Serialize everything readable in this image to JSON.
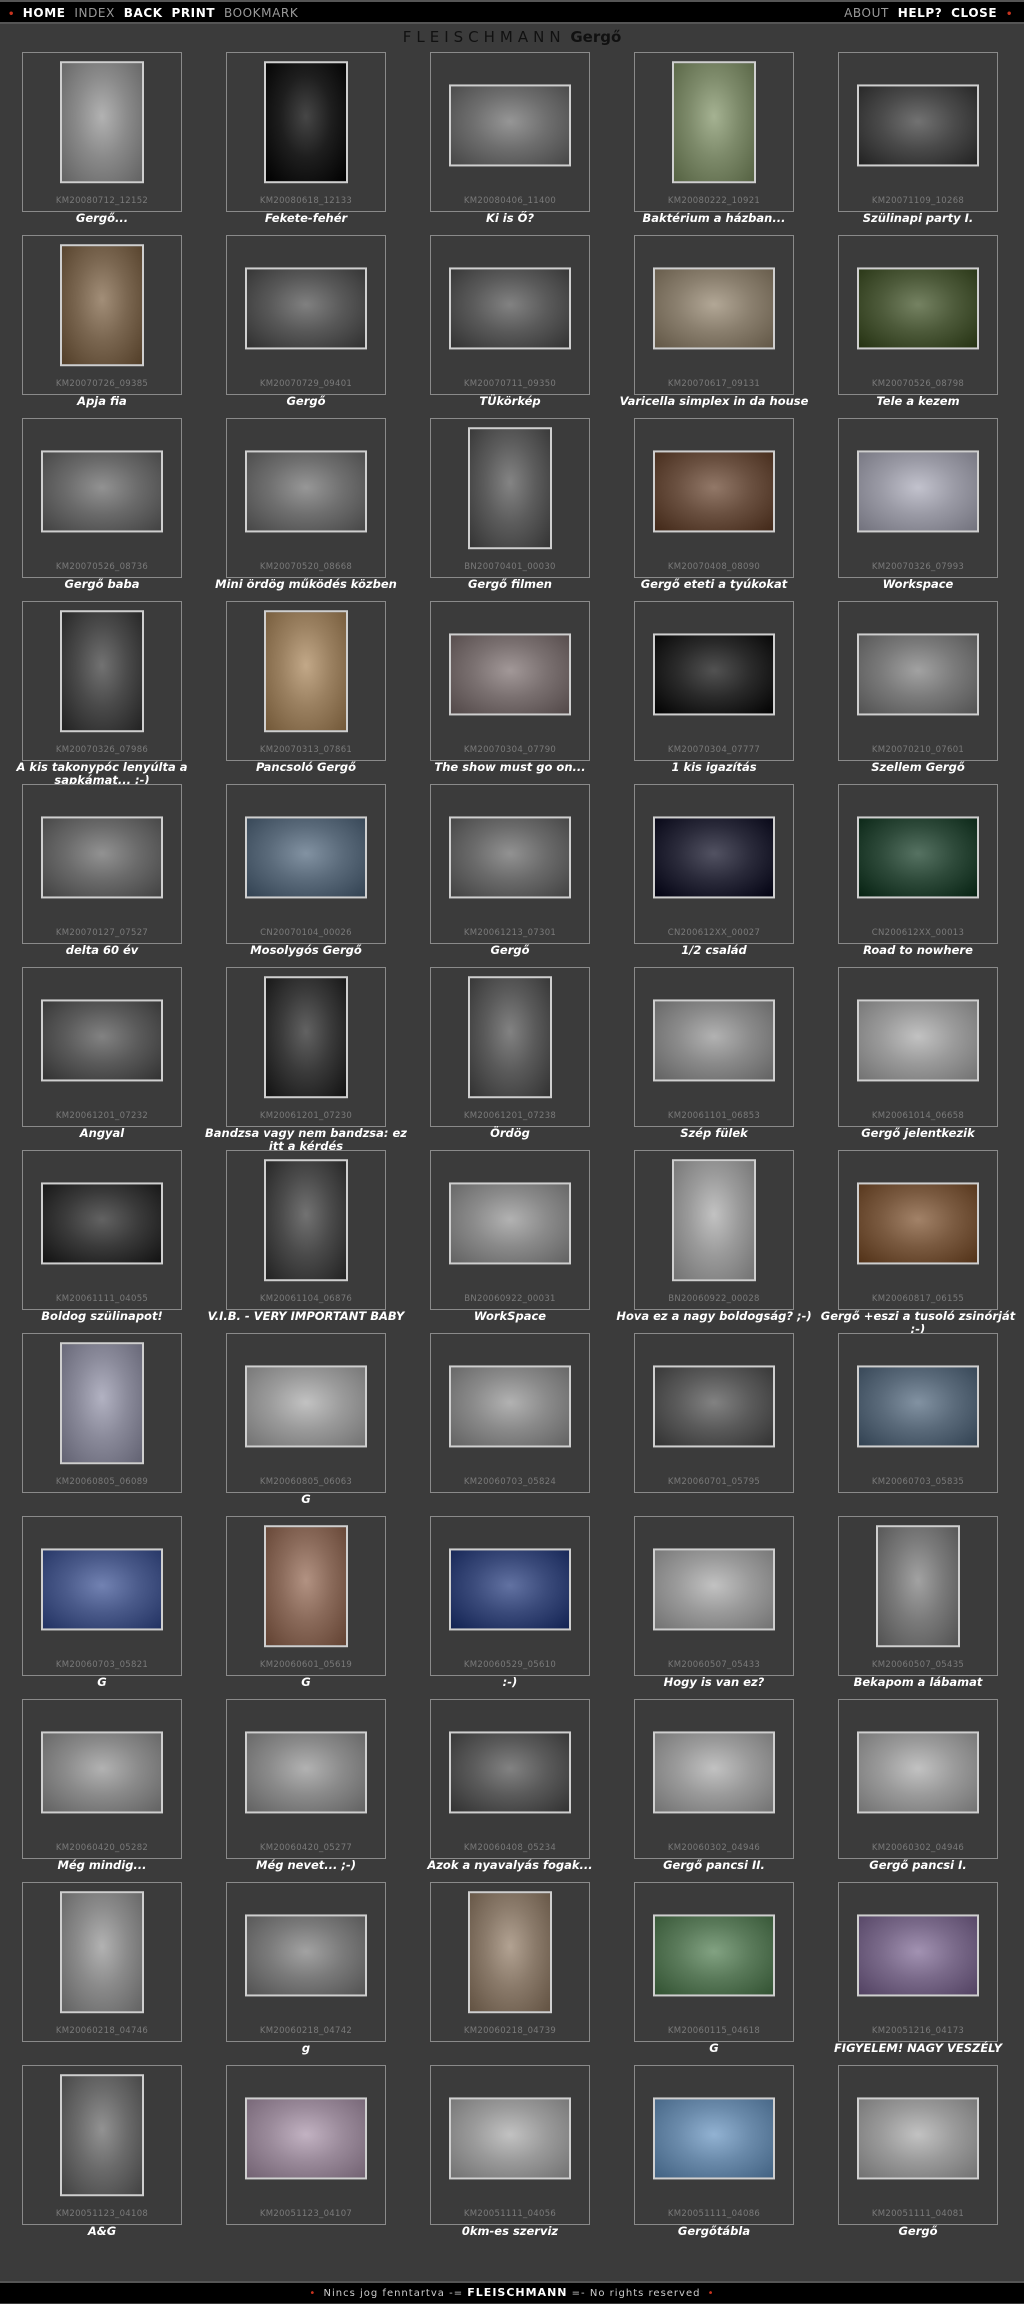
{
  "nav": {
    "left": [
      "HOME",
      "INDEX",
      "BACK",
      "PRINT",
      "BOOKMARK"
    ],
    "right": [
      "ABOUT",
      "HELP?",
      "CLOSE"
    ]
  },
  "title": {
    "brand": "FLEISCHMANN",
    "name": "Gergő"
  },
  "footer": {
    "left": "Nincs jog fenntartva",
    "brand": "FLEISCHMANN",
    "right": "No rights reserved"
  },
  "items": [
    {
      "file": "KM20080712_12152",
      "caption": "Gergő...",
      "o": "p",
      "c": "#8a8a8a"
    },
    {
      "file": "KM20080618_12133",
      "caption": "Fekete-fehér",
      "o": "p",
      "c": "#1e1e1e"
    },
    {
      "file": "KM20080406_11400",
      "caption": "Ki is Ő?",
      "o": "l",
      "c": "#6e6e6e"
    },
    {
      "file": "KM20080222_10921",
      "caption": "Baktérium a házban...",
      "o": "p",
      "c": "#7d8a6a"
    },
    {
      "file": "KM20071109_10268",
      "caption": "Szülinapi party I.",
      "o": "l",
      "c": "#4a4a4a"
    },
    {
      "file": "KM20070726_09385",
      "caption": "Apja fia",
      "o": "p",
      "c": "#7a6650"
    },
    {
      "file": "KM20070729_09401",
      "caption": "Gergő",
      "o": "l",
      "c": "#585858"
    },
    {
      "file": "KM20070711_09350",
      "caption": "TÜkörkép",
      "o": "l",
      "c": "#5a5a5a"
    },
    {
      "file": "KM20070617_09131",
      "caption": "Varicella simplex in da house",
      "o": "l",
      "c": "#8a7f6e"
    },
    {
      "file": "KM20070526_08798",
      "caption": "Tele a kezem",
      "o": "l",
      "c": "#4d5a3a"
    },
    {
      "file": "KM20070526_08736",
      "caption": "Gergő baba",
      "o": "l",
      "c": "#6a6a6a"
    },
    {
      "file": "KM20070520_08668",
      "caption": "Mini ördög működés közben",
      "o": "l",
      "c": "#6f6f6f"
    },
    {
      "file": "BN20070401_00030",
      "caption": "Gergő filmen",
      "o": "p",
      "c": "#5c5c5c"
    },
    {
      "file": "KM20070408_08090",
      "caption": "Gergő eteti a tyúkokat",
      "o": "l",
      "c": "#6a5040"
    },
    {
      "file": "KM20070326_07993",
      "caption": "Workspace",
      "o": "l",
      "c": "#9a9aa5"
    },
    {
      "file": "KM20070326_07986",
      "caption": "A kis takonypóc lenyúlta a sapkámat... ;-)",
      "o": "p",
      "c": "#4a4a4a"
    },
    {
      "file": "KM20070313_07861",
      "caption": "Pancsoló Gergő",
      "o": "p",
      "c": "#9a8060"
    },
    {
      "file": "KM20070304_07790",
      "caption": "The show must go on...",
      "o": "l",
      "c": "#7a7070"
    },
    {
      "file": "KM20070304_07777",
      "caption": "1 kis igazítás",
      "o": "l",
      "c": "#2a2a2a"
    },
    {
      "file": "KM20070210_07601",
      "caption": "Szellem Gergő",
      "o": "l",
      "c": "#7a7a7a"
    },
    {
      "file": "KM20070127_07527",
      "caption": "delta 60 év",
      "o": "l",
      "c": "#6a6a6a"
    },
    {
      "file": "CN20070104_00026",
      "caption": "Mosolygós Gergő",
      "o": "l",
      "c": "#5a6a7a"
    },
    {
      "file": "KM20061213_07301",
      "caption": "Gergő",
      "o": "l",
      "c": "#6a6a6a"
    },
    {
      "file": "CN200612XX_00027",
      "caption": "1/2 család",
      "o": "l",
      "c": "#2a2a3a"
    },
    {
      "file": "CN200612XX_00013",
      "caption": "Road to nowhere",
      "o": "l",
      "c": "#2e4a3a"
    },
    {
      "file": "KM20061201_07232",
      "caption": "Angyal",
      "o": "l",
      "c": "#5a5a5a"
    },
    {
      "file": "KM20061201_07230",
      "caption": "Bandzsa vagy nem bandzsa: ez itt a kérdés",
      "o": "p",
      "c": "#3a3a3a"
    },
    {
      "file": "KM20061201_07238",
      "caption": "Ördög",
      "o": "p",
      "c": "#5a5a5a"
    },
    {
      "file": "KM20061101_06853",
      "caption": "Szép fülek",
      "o": "l",
      "c": "#8a8a8a"
    },
    {
      "file": "KM20061014_06658",
      "caption": "Gergő jelentkezik",
      "o": "l",
      "c": "#9a9a9a"
    },
    {
      "file": "KM20061111_04055",
      "caption": "Boldog szülinapot!",
      "o": "l",
      "c": "#3a3a3a"
    },
    {
      "file": "KM20061104_06876",
      "caption": "V.I.B. - VERY IMPORTANT BABY",
      "o": "p",
      "c": "#4a4a4a"
    },
    {
      "file": "BN20060922_00031",
      "caption": "WorkSpace",
      "o": "l",
      "c": "#8a8a8a"
    },
    {
      "file": "BN20060922_00028",
      "caption": "Hova ez a nagy boldogság? ;-)",
      "o": "p",
      "c": "#9a9a9a"
    },
    {
      "file": "KM20060817_06155",
      "caption": "Gergő +eszi a tusoló zsinórját ;-)",
      "o": "l",
      "c": "#7a5a40"
    },
    {
      "file": "KM20060805_06089",
      "caption": "",
      "o": "p",
      "c": "#8a8a9a"
    },
    {
      "file": "KM20060805_06063",
      "caption": "G",
      "o": "l",
      "c": "#9a9a9a"
    },
    {
      "file": "KM20060703_05824",
      "caption": "",
      "o": "l",
      "c": "#8a8a8a"
    },
    {
      "file": "KM20060701_05795",
      "caption": "",
      "o": "l",
      "c": "#5a5a5a"
    },
    {
      "file": "KM20060703_05835",
      "caption": "",
      "o": "l",
      "c": "#5a6a7a"
    },
    {
      "file": "KM20060703_05821",
      "caption": "G",
      "o": "l",
      "c": "#4a5a8a"
    },
    {
      "file": "KM20060601_05619",
      "caption": "G",
      "o": "p",
      "c": "#8a6a5a"
    },
    {
      "file": "KM20060529_05610",
      "caption": ":-)",
      "o": "l",
      "c": "#3a4a7a"
    },
    {
      "file": "KM20060507_05433",
      "caption": "Hogy is van ez?",
      "o": "l",
      "c": "#9a9a9a"
    },
    {
      "file": "KM20060507_05435",
      "caption": "Bekapom a lábamat",
      "o": "p",
      "c": "#7a7a7a"
    },
    {
      "file": "KM20060420_05282",
      "caption": "Még mindig...",
      "o": "l",
      "c": "#8a8a8a"
    },
    {
      "file": "KM20060420_05277",
      "caption": "Még nevet... ;-)",
      "o": "l",
      "c": "#8a8a8a"
    },
    {
      "file": "KM20060408_05234",
      "caption": "Azok a nyavalyás fogak...",
      "o": "l",
      "c": "#5a5a5a"
    },
    {
      "file": "KM20060302_04946",
      "caption": "Gergő pancsi II.",
      "o": "l",
      "c": "#9a9a9a"
    },
    {
      "file": "KM20060302_04946",
      "caption": "Gergő pancsi I.",
      "o": "l",
      "c": "#9a9a9a"
    },
    {
      "file": "KM20060218_04746",
      "caption": "",
      "o": "p",
      "c": "#8a8a8a"
    },
    {
      "file": "KM20060218_04742",
      "caption": "g",
      "o": "l",
      "c": "#7a7a7a"
    },
    {
      "file": "KM20060218_04739",
      "caption": "",
      "o": "p",
      "c": "#8a7a6a"
    },
    {
      "file": "KM20060115_04618",
      "caption": "G",
      "o": "l",
      "c": "#5a7a5a"
    },
    {
      "file": "KM20051216_04173",
      "caption": "FIGYELEM! NAGY VESZÉLY",
      "o": "l",
      "c": "#7a6a8a"
    },
    {
      "file": "KM20051123_04108",
      "caption": "A&G",
      "o": "p",
      "c": "#6a6a6a"
    },
    {
      "file": "KM20051123_04107",
      "caption": "",
      "o": "l",
      "c": "#9a8a9a"
    },
    {
      "file": "KM20051111_04056",
      "caption": "0km-es szerviz",
      "o": "l",
      "c": "#9a9a9a"
    },
    {
      "file": "KM20051111_04086",
      "caption": "Gergőtábla",
      "o": "l",
      "c": "#6a8aaa"
    },
    {
      "file": "KM20051111_04081",
      "caption": "Gergő",
      "o": "l",
      "c": "#9a9a9a"
    }
  ]
}
